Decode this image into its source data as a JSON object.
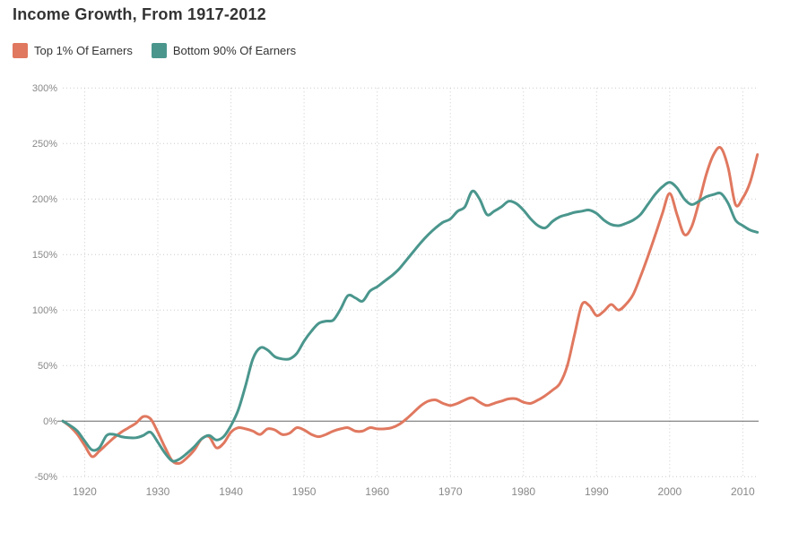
{
  "page": {
    "background": "#ffffff"
  },
  "header": {
    "title": "Income Growth, From 1917-2012"
  },
  "legend": {
    "items": [
      {
        "label": "Top 1% Of Earners",
        "color": "#e0785f"
      },
      {
        "label": "Bottom 90% Of Earners",
        "color": "#4a968d"
      }
    ]
  },
  "chart_data": {
    "type": "line",
    "title": "Income Growth, From 1917-2012",
    "xlabel": "",
    "ylabel": "",
    "xlim": [
      1917,
      2012
    ],
    "ylim": [
      -50,
      300
    ],
    "grid": "dotted",
    "zero_line": true,
    "legend_position": "top-left",
    "y_ticks": [
      {
        "value": 300,
        "label": "300%"
      },
      {
        "value": 250,
        "label": "250%"
      },
      {
        "value": 200,
        "label": "200%"
      },
      {
        "value": 150,
        "label": "150%"
      },
      {
        "value": 100,
        "label": "100%"
      },
      {
        "value": 50,
        "label": "50%"
      },
      {
        "value": 0,
        "label": "0%"
      },
      {
        "value": -50,
        "label": "-50%"
      }
    ],
    "x_ticks": [
      {
        "value": 1920,
        "label": "1920"
      },
      {
        "value": 1930,
        "label": "1930"
      },
      {
        "value": 1940,
        "label": "1940"
      },
      {
        "value": 1950,
        "label": "1950"
      },
      {
        "value": 1960,
        "label": "1960"
      },
      {
        "value": 1970,
        "label": "1970"
      },
      {
        "value": 1980,
        "label": "1980"
      },
      {
        "value": 1990,
        "label": "1990"
      },
      {
        "value": 2000,
        "label": "2000"
      },
      {
        "value": 2010,
        "label": "2010"
      }
    ],
    "x": [
      1917,
      1918,
      1919,
      1920,
      1921,
      1922,
      1923,
      1924,
      1925,
      1926,
      1927,
      1928,
      1929,
      1930,
      1931,
      1932,
      1933,
      1934,
      1935,
      1936,
      1937,
      1938,
      1939,
      1940,
      1941,
      1942,
      1943,
      1944,
      1945,
      1946,
      1947,
      1948,
      1949,
      1950,
      1951,
      1952,
      1953,
      1954,
      1955,
      1956,
      1957,
      1958,
      1959,
      1960,
      1961,
      1962,
      1963,
      1964,
      1965,
      1966,
      1967,
      1968,
      1969,
      1970,
      1971,
      1972,
      1973,
      1974,
      1975,
      1976,
      1977,
      1978,
      1979,
      1980,
      1981,
      1982,
      1983,
      1984,
      1985,
      1986,
      1987,
      1988,
      1989,
      1990,
      1991,
      1992,
      1993,
      1994,
      1995,
      1996,
      1997,
      1998,
      1999,
      2000,
      2001,
      2002,
      2003,
      2004,
      2005,
      2006,
      2007,
      2008,
      2009,
      2010,
      2011,
      2012
    ],
    "series": [
      {
        "name": "Top 1% Of Earners",
        "color": "#e0785f",
        "values": [
          0,
          -5,
          -12,
          -22,
          -32,
          -27,
          -21,
          -15,
          -10,
          -6,
          -2,
          4,
          2,
          -10,
          -24,
          -36,
          -38,
          -33,
          -26,
          -16,
          -14,
          -24,
          -20,
          -10,
          -6,
          -7,
          -9,
          -12,
          -7,
          -8,
          -12,
          -11,
          -6,
          -8,
          -12,
          -14,
          -12,
          -9,
          -7,
          -6,
          -9,
          -9,
          -6,
          -7,
          -7,
          -6,
          -3,
          2,
          8,
          14,
          18,
          19,
          16,
          14,
          16,
          19,
          21,
          17,
          14,
          16,
          18,
          20,
          20,
          17,
          16,
          19,
          23,
          28,
          34,
          50,
          78,
          105,
          104,
          95,
          99,
          105,
          100,
          105,
          114,
          130,
          148,
          167,
          187,
          205,
          186,
          168,
          175,
          197,
          222,
          240,
          246,
          228,
          195,
          201,
          215,
          240
        ]
      },
      {
        "name": "Bottom 90% Of Earners",
        "color": "#4a968d",
        "values": [
          0,
          -4,
          -9,
          -18,
          -26,
          -24,
          -13,
          -12,
          -14,
          -15,
          -15,
          -13,
          -10,
          -19,
          -29,
          -36,
          -34,
          -29,
          -23,
          -16,
          -13,
          -17,
          -14,
          -4,
          10,
          32,
          56,
          66,
          64,
          58,
          56,
          56,
          61,
          72,
          81,
          88,
          90,
          91,
          101,
          113,
          111,
          108,
          117,
          121,
          126,
          131,
          137,
          145,
          153,
          161,
          168,
          174,
          179,
          182,
          189,
          193,
          207,
          200,
          186,
          189,
          193,
          198,
          196,
          190,
          182,
          176,
          174,
          180,
          184,
          186,
          188,
          189,
          190,
          187,
          181,
          177,
          176,
          178,
          181,
          186,
          195,
          204,
          211,
          215,
          210,
          200,
          195,
          198,
          202,
          204,
          205,
          196,
          181,
          176,
          172,
          170
        ]
      }
    ],
    "styles": {
      "grid_color": "#cccccc",
      "zero_line_color": "#666666",
      "tick_label_color": "#888888",
      "line_width": 3
    }
  }
}
